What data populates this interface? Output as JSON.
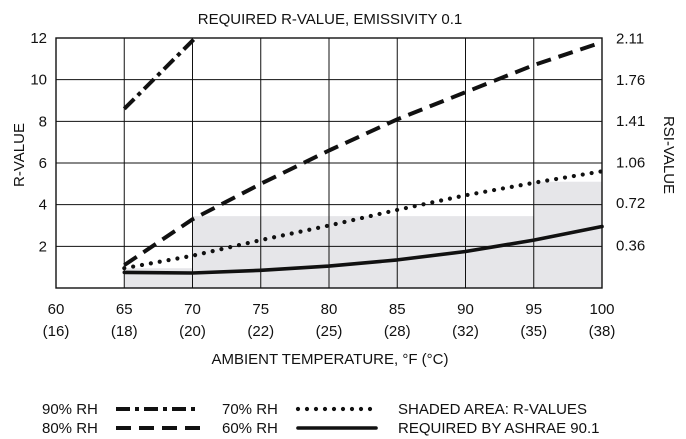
{
  "chart_data": {
    "type": "line",
    "title": "REQUIRED R-VALUE, EMISSIVITY 0.1",
    "xlabel": "AMBIENT TEMPERATURE, °F (°C)",
    "ylabel": "R-VALUE",
    "y2label": "RSI-VALUE",
    "xlim": [
      60,
      100
    ],
    "ylim": [
      0,
      12
    ],
    "grid": true,
    "x_ticks": [
      {
        "value": 60,
        "label": "60",
        "sublabel": "(16)"
      },
      {
        "value": 65,
        "label": "65",
        "sublabel": "(18)"
      },
      {
        "value": 70,
        "label": "70",
        "sublabel": "(20)"
      },
      {
        "value": 75,
        "label": "75",
        "sublabel": "(22)"
      },
      {
        "value": 80,
        "label": "80",
        "sublabel": "(25)"
      },
      {
        "value": 85,
        "label": "85",
        "sublabel": "(28)"
      },
      {
        "value": 90,
        "label": "90",
        "sublabel": "(32)"
      },
      {
        "value": 95,
        "label": "95",
        "sublabel": "(35)"
      },
      {
        "value": 100,
        "label": "100",
        "sublabel": "(38)"
      }
    ],
    "y_ticks": [
      {
        "value": 2,
        "label": "2"
      },
      {
        "value": 4,
        "label": "4"
      },
      {
        "value": 6,
        "label": "6"
      },
      {
        "value": 8,
        "label": "8"
      },
      {
        "value": 10,
        "label": "10"
      },
      {
        "value": 12,
        "label": "12"
      }
    ],
    "y2_ticks": [
      {
        "value": 2.05,
        "label": "0.36"
      },
      {
        "value": 4.09,
        "label": "0.72"
      },
      {
        "value": 6.02,
        "label": "1.06"
      },
      {
        "value": 8.01,
        "label": "1.41"
      },
      {
        "value": 9.99,
        "label": "1.76"
      },
      {
        "value": 11.98,
        "label": "2.11"
      }
    ],
    "series": [
      {
        "name": "90% RH",
        "style": "dashdot",
        "x": [
          65,
          70.2
        ],
        "values": [
          8.6,
          12.0
        ]
      },
      {
        "name": "80% RH",
        "style": "dash",
        "x": [
          65,
          70,
          75,
          80,
          85,
          90,
          95,
          100
        ],
        "values": [
          1.1,
          3.3,
          5.0,
          6.6,
          8.1,
          9.4,
          10.7,
          11.8
        ]
      },
      {
        "name": "70% RH",
        "style": "dot",
        "x": [
          65,
          70,
          75,
          80,
          85,
          90,
          95,
          100
        ],
        "values": [
          0.95,
          1.55,
          2.3,
          3.0,
          3.75,
          4.45,
          5.05,
          5.6
        ]
      },
      {
        "name": "60% RH",
        "style": "solid",
        "x": [
          65,
          70,
          75,
          80,
          85,
          90,
          95,
          100
        ],
        "values": [
          0.75,
          0.72,
          0.85,
          1.05,
          1.35,
          1.75,
          2.3,
          2.95
        ]
      }
    ],
    "shaded_area": {
      "label_lines": [
        "SHADED AREA: R-VALUES",
        "REQUIRED BY ASHRAE 90.1"
      ],
      "steps": [
        {
          "x0": 65,
          "x1": 70,
          "value": 0.95
        },
        {
          "x0": 70,
          "x1": 95,
          "value": 3.45
        },
        {
          "x0": 95,
          "x1": 100,
          "value": 5.1
        }
      ]
    },
    "legend_position": "bottom"
  },
  "colors": {
    "line": "#111111",
    "grid": "#111111",
    "shade": "#e6e6e9"
  }
}
